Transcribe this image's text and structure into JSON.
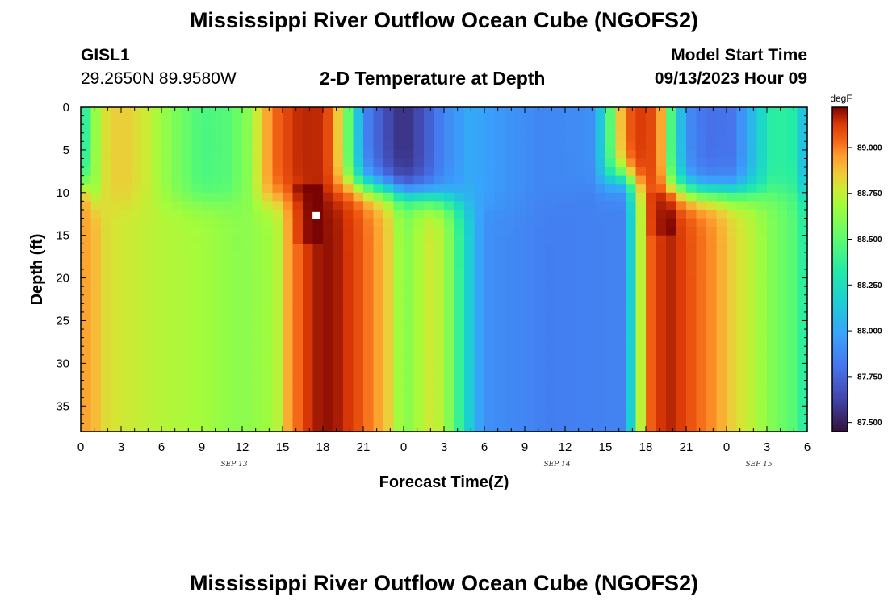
{
  "header": {
    "title": "Mississippi River Outflow Ocean Cube (NGOFS2)",
    "station_id": "GISL1",
    "station_coords": "29.2650N  89.9580W",
    "plot_title": "2-D Temperature at Depth",
    "model_start_label": "Model Start Time",
    "model_start_value": "09/13/2023 Hour 09"
  },
  "footer": {
    "title": "Mississippi River Outflow Ocean Cube (NGOFS2)"
  },
  "colors": {
    "marker": "#ffffff",
    "frame": "#000000"
  },
  "chart_data": {
    "type": "heatmap",
    "xlabel": "Forecast Time(Z)",
    "ylabel": "Depth (ft)",
    "x_tick_labels": [
      "0",
      "3",
      "6",
      "9",
      "12",
      "15",
      "18",
      "21",
      "0",
      "3",
      "6",
      "9",
      "12",
      "15",
      "18",
      "21",
      "0",
      "3",
      "6"
    ],
    "x_range_hours": [
      0,
      54
    ],
    "date_labels": [
      {
        "label": "SEP 13",
        "hour": 12
      },
      {
        "label": "SEP 14",
        "hour": 36
      },
      {
        "label": "SEP 15",
        "hour": 51
      }
    ],
    "y_tick_labels": [
      "0",
      "5",
      "10",
      "15",
      "20",
      "25",
      "30",
      "35"
    ],
    "y_range": [
      0,
      38
    ],
    "y_reversed": true,
    "colorbar": {
      "unit": "degF",
      "tick_labels": [
        "87.500",
        "87.750",
        "88.000",
        "88.250",
        "88.500",
        "88.750",
        "89.000"
      ],
      "range": [
        87.45,
        89.22
      ]
    },
    "marker": {
      "hour": 17.5,
      "depth": 12.7
    }
  }
}
